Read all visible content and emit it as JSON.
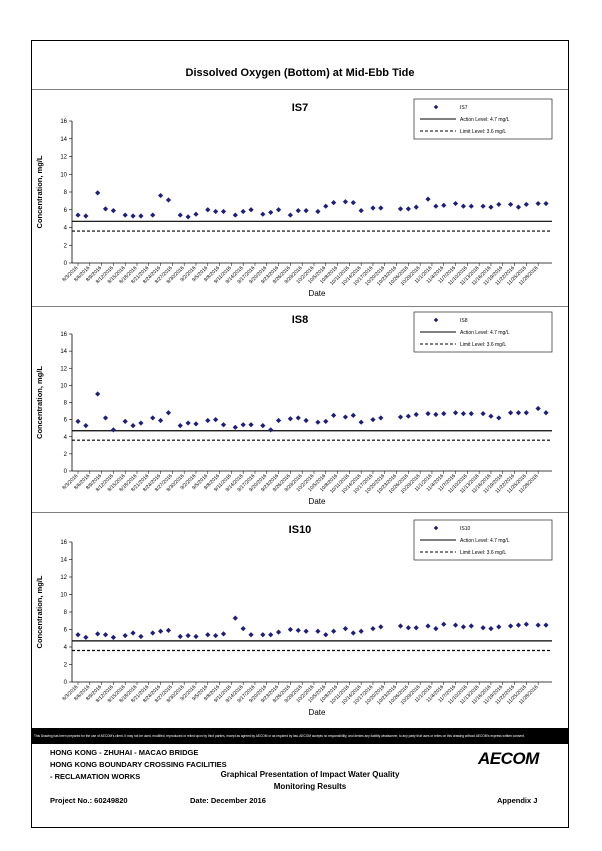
{
  "page_title": "Dissolved Oxygen (Bottom) at Mid-Ebb Tide",
  "disclaimer": "This Drawing has been prepared for the use of AECOM's client. It may not be used, modified, reproduced or relied upon by third parties, except as agreed by AECOM or as required by law. AECOM accepts no responsibility, and denies any liability whatsoever, to any party that uses or relies on this drawing without AECOM's express written consent.",
  "footer": {
    "line1": "HONG KONG - ZHUHAI - MACAO BRIDGE",
    "line2": "HONG KONG BOUNDARY CROSSING FACILITIES",
    "line3": "- RECLAMATION WORKS",
    "title1": "Graphical Presentation of Impact Water Quality",
    "title2": "Monitoring Results",
    "project": "Project No.: 60249820",
    "date": "Date: December 2016",
    "appendix": "Appendix J",
    "logo": "AECOM"
  },
  "chart_data": [
    {
      "type": "scatter",
      "title": "IS7",
      "xlabel": "Date",
      "ylabel": "Concentration, mg/L",
      "ylim": [
        0,
        16
      ],
      "yticks": [
        0,
        2,
        4,
        6,
        8,
        10,
        12,
        14,
        16
      ],
      "x_tick_labels": [
        "8/3/2016",
        "8/6/2016",
        "8/9/2016",
        "8/12/2016",
        "8/15/2016",
        "8/18/2016",
        "8/21/2016",
        "8/24/2016",
        "8/27/2016",
        "8/30/2016",
        "9/2/2016",
        "9/5/2016",
        "9/8/2016",
        "9/11/2016",
        "9/14/2016",
        "9/17/2016",
        "9/20/2016",
        "9/23/2016",
        "9/26/2016",
        "9/29/2016",
        "10/2/2016",
        "10/5/2016",
        "10/8/2016",
        "10/11/2016",
        "10/14/2016",
        "10/17/2016",
        "10/20/2016",
        "10/23/2016",
        "10/26/2016",
        "10/29/2016",
        "11/1/2016",
        "11/4/2016",
        "11/7/2016",
        "11/10/2016",
        "11/13/2016",
        "11/16/2016",
        "11/19/2016",
        "11/22/2016",
        "11/25/2016",
        "11/28/2016"
      ],
      "x_range": [
        "8/3/2016",
        "11/30/2016"
      ],
      "series": [
        {
          "name": "IS7",
          "marker": "diamond",
          "color": "#1f1f7a",
          "x": [
            "8/3/2016",
            "8/5/2016",
            "8/8/2016",
            "8/10/2016",
            "8/12/2016",
            "8/15/2016",
            "8/17/2016",
            "8/19/2016",
            "8/22/2016",
            "8/24/2016",
            "8/26/2016",
            "8/29/2016",
            "8/31/2016",
            "9/2/2016",
            "9/5/2016",
            "9/7/2016",
            "9/9/2016",
            "9/12/2016",
            "9/14/2016",
            "9/16/2016",
            "9/19/2016",
            "9/21/2016",
            "9/23/2016",
            "9/26/2016",
            "9/28/2016",
            "9/30/2016",
            "10/3/2016",
            "10/5/2016",
            "10/7/2016",
            "10/10/2016",
            "10/12/2016",
            "10/14/2016",
            "10/17/2016",
            "10/19/2016",
            "10/24/2016",
            "10/26/2016",
            "10/28/2016",
            "10/31/2016",
            "11/2/2016",
            "11/4/2016",
            "11/7/2016",
            "11/9/2016",
            "11/11/2016",
            "11/14/2016",
            "11/16/2016",
            "11/18/2016",
            "11/21/2016",
            "11/23/2016",
            "11/25/2016",
            "11/28/2016",
            "11/30/2016"
          ],
          "y": [
            5.4,
            5.3,
            7.9,
            6.1,
            5.9,
            5.4,
            5.3,
            5.3,
            5.4,
            7.6,
            7.1,
            5.4,
            5.2,
            5.5,
            6.0,
            5.8,
            5.8,
            5.4,
            5.8,
            6.0,
            5.5,
            5.7,
            6.0,
            5.4,
            5.9,
            5.9,
            5.8,
            6.4,
            6.8,
            6.9,
            6.8,
            5.9,
            6.2,
            6.2,
            6.1,
            6.1,
            6.3,
            7.2,
            6.4,
            6.5,
            6.7,
            6.4,
            6.4,
            6.4,
            6.3,
            6.6,
            6.6,
            6.3,
            6.6,
            6.7,
            6.7
          ]
        },
        {
          "name": "Action Level: 4.7 mg/L",
          "style": "solid",
          "value": 4.7
        },
        {
          "name": "Limit Level: 3.6 mg/L",
          "style": "dashed",
          "value": 3.6
        }
      ],
      "legend": "top-right"
    },
    {
      "type": "scatter",
      "title": "IS8",
      "xlabel": "Date",
      "ylabel": "Concentration, mg/L",
      "ylim": [
        0,
        16
      ],
      "yticks": [
        0,
        2,
        4,
        6,
        8,
        10,
        12,
        14,
        16
      ],
      "x_tick_labels": [
        "8/3/2016",
        "8/6/2016",
        "8/9/2016",
        "8/12/2016",
        "8/15/2016",
        "8/18/2016",
        "8/21/2016",
        "8/24/2016",
        "8/27/2016",
        "8/30/2016",
        "9/2/2016",
        "9/5/2016",
        "9/8/2016",
        "9/11/2016",
        "9/14/2016",
        "9/17/2016",
        "9/20/2016",
        "9/23/2016",
        "9/26/2016",
        "9/29/2016",
        "10/2/2016",
        "10/5/2016",
        "10/8/2016",
        "10/11/2016",
        "10/14/2016",
        "10/17/2016",
        "10/20/2016",
        "10/23/2016",
        "10/26/2016",
        "10/29/2016",
        "11/1/2016",
        "11/4/2016",
        "11/7/2016",
        "11/10/2016",
        "11/13/2016",
        "11/16/2016",
        "11/19/2016",
        "11/22/2016",
        "11/25/2016",
        "11/28/2016"
      ],
      "x_range": [
        "8/3/2016",
        "11/30/2016"
      ],
      "series": [
        {
          "name": "IS8",
          "marker": "diamond",
          "color": "#1f1f7a",
          "x": [
            "8/3/2016",
            "8/5/2016",
            "8/8/2016",
            "8/10/2016",
            "8/12/2016",
            "8/15/2016",
            "8/17/2016",
            "8/19/2016",
            "8/22/2016",
            "8/24/2016",
            "8/26/2016",
            "8/29/2016",
            "8/31/2016",
            "9/2/2016",
            "9/5/2016",
            "9/7/2016",
            "9/9/2016",
            "9/12/2016",
            "9/14/2016",
            "9/16/2016",
            "9/19/2016",
            "9/21/2016",
            "9/23/2016",
            "9/26/2016",
            "9/28/2016",
            "9/30/2016",
            "10/3/2016",
            "10/5/2016",
            "10/7/2016",
            "10/10/2016",
            "10/12/2016",
            "10/14/2016",
            "10/17/2016",
            "10/19/2016",
            "10/24/2016",
            "10/26/2016",
            "10/28/2016",
            "10/31/2016",
            "11/2/2016",
            "11/4/2016",
            "11/7/2016",
            "11/9/2016",
            "11/11/2016",
            "11/14/2016",
            "11/16/2016",
            "11/18/2016",
            "11/21/2016",
            "11/23/2016",
            "11/25/2016",
            "11/28/2016",
            "11/30/2016"
          ],
          "y": [
            5.8,
            5.3,
            9.0,
            6.2,
            4.8,
            5.8,
            5.3,
            5.6,
            6.2,
            5.9,
            6.8,
            5.3,
            5.6,
            5.5,
            5.9,
            6.0,
            5.4,
            5.1,
            5.4,
            5.4,
            5.3,
            4.8,
            5.9,
            6.1,
            6.2,
            5.9,
            5.7,
            5.8,
            6.5,
            6.3,
            6.5,
            5.7,
            6.0,
            6.2,
            6.3,
            6.4,
            6.6,
            6.7,
            6.6,
            6.7,
            6.8,
            6.7,
            6.7,
            6.7,
            6.4,
            6.2,
            6.8,
            6.8,
            6.8,
            7.3,
            6.8
          ]
        },
        {
          "name": "Action Level: 4.7 mg/L",
          "style": "solid",
          "value": 4.7
        },
        {
          "name": "Limit Level: 3.6 mg/L",
          "style": "dashed",
          "value": 3.6
        }
      ],
      "legend": "top-right"
    },
    {
      "type": "scatter",
      "title": "IS10",
      "xlabel": "Date",
      "ylabel": "Concentration, mg/L",
      "ylim": [
        0,
        16
      ],
      "yticks": [
        0,
        2,
        4,
        6,
        8,
        10,
        12,
        14,
        16
      ],
      "x_tick_labels": [
        "8/3/2016",
        "8/6/2016",
        "8/9/2016",
        "8/12/2016",
        "8/15/2016",
        "8/18/2016",
        "8/21/2016",
        "8/24/2016",
        "8/27/2016",
        "8/30/2016",
        "9/2/2016",
        "9/5/2016",
        "9/8/2016",
        "9/11/2016",
        "9/14/2016",
        "9/17/2016",
        "9/20/2016",
        "9/23/2016",
        "9/26/2016",
        "9/29/2016",
        "10/2/2016",
        "10/5/2016",
        "10/8/2016",
        "10/11/2016",
        "10/14/2016",
        "10/17/2016",
        "10/20/2016",
        "10/23/2016",
        "10/26/2016",
        "10/29/2016",
        "11/1/2016",
        "11/4/2016",
        "11/7/2016",
        "11/10/2016",
        "11/13/2016",
        "11/16/2016",
        "11/19/2016",
        "11/22/2016",
        "11/25/2016",
        "11/28/2016"
      ],
      "x_range": [
        "8/3/2016",
        "11/30/2016"
      ],
      "series": [
        {
          "name": "IS10",
          "marker": "diamond",
          "color": "#1f1f7a",
          "x": [
            "8/3/2016",
            "8/5/2016",
            "8/8/2016",
            "8/10/2016",
            "8/12/2016",
            "8/15/2016",
            "8/17/2016",
            "8/19/2016",
            "8/22/2016",
            "8/24/2016",
            "8/26/2016",
            "8/29/2016",
            "8/31/2016",
            "9/2/2016",
            "9/5/2016",
            "9/7/2016",
            "9/9/2016",
            "9/12/2016",
            "9/14/2016",
            "9/16/2016",
            "9/19/2016",
            "9/21/2016",
            "9/23/2016",
            "9/26/2016",
            "9/28/2016",
            "9/30/2016",
            "10/3/2016",
            "10/5/2016",
            "10/7/2016",
            "10/10/2016",
            "10/12/2016",
            "10/14/2016",
            "10/17/2016",
            "10/19/2016",
            "10/24/2016",
            "10/26/2016",
            "10/28/2016",
            "10/31/2016",
            "11/2/2016",
            "11/4/2016",
            "11/7/2016",
            "11/9/2016",
            "11/11/2016",
            "11/14/2016",
            "11/16/2016",
            "11/18/2016",
            "11/21/2016",
            "11/23/2016",
            "11/25/2016",
            "11/28/2016",
            "11/30/2016"
          ],
          "y": [
            5.4,
            5.1,
            5.5,
            5.4,
            5.1,
            5.3,
            5.6,
            5.2,
            5.6,
            5.8,
            5.9,
            5.2,
            5.3,
            5.2,
            5.4,
            5.3,
            5.5,
            7.3,
            6.1,
            5.4,
            5.4,
            5.4,
            5.7,
            6.0,
            5.9,
            5.8,
            5.8,
            5.4,
            5.8,
            6.1,
            5.6,
            5.8,
            6.1,
            6.3,
            6.4,
            6.2,
            6.2,
            6.4,
            6.1,
            6.6,
            6.5,
            6.3,
            6.4,
            6.2,
            6.1,
            6.3,
            6.4,
            6.5,
            6.6,
            6.5,
            6.5
          ]
        },
        {
          "name": "Action Level: 4.7 mg/L",
          "style": "solid",
          "value": 4.7
        },
        {
          "name": "Limit Level: 3.6 mg/L",
          "style": "dashed",
          "value": 3.6
        }
      ],
      "legend": "top-right"
    }
  ]
}
